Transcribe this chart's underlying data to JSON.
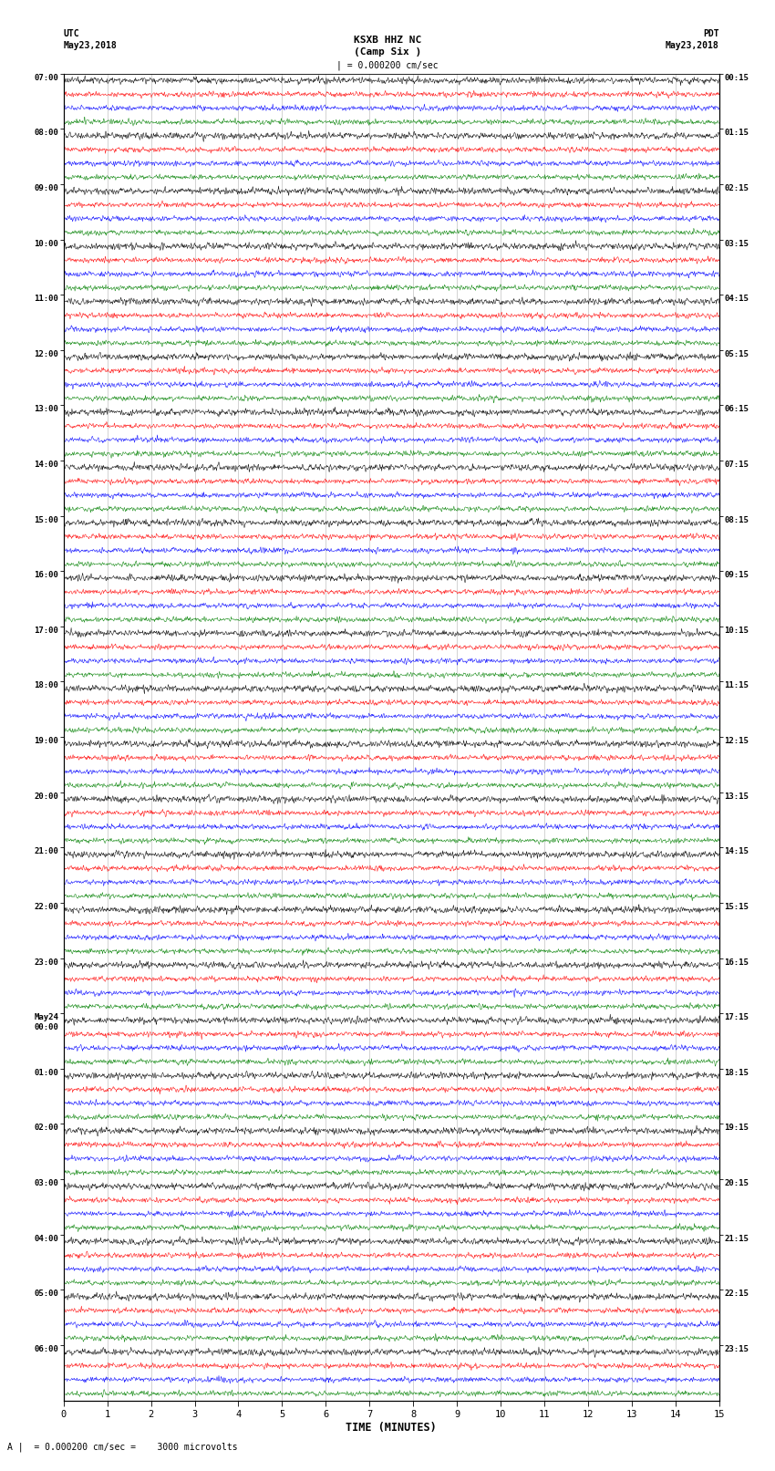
{
  "title_center": "KSXB HHZ NC",
  "title_sub": "(Camp Six )",
  "label_left_top": "UTC",
  "label_left_date": "May23,2018",
  "label_right_top": "PDT",
  "label_right_date": "May23,2018",
  "scale_label": "| = 0.000200 cm/sec",
  "footer_text": "A |  = 0.000200 cm/sec =    3000 microvolts",
  "xlabel": "TIME (MINUTES)",
  "utc_times": [
    "07:00",
    "08:00",
    "09:00",
    "10:00",
    "11:00",
    "12:00",
    "13:00",
    "14:00",
    "15:00",
    "16:00",
    "17:00",
    "18:00",
    "19:00",
    "20:00",
    "21:00",
    "22:00",
    "23:00",
    "May24\n00:00",
    "01:00",
    "02:00",
    "03:00",
    "04:00",
    "05:00",
    "06:00"
  ],
  "pdt_times": [
    "00:15",
    "01:15",
    "02:15",
    "03:15",
    "04:15",
    "05:15",
    "06:15",
    "07:15",
    "08:15",
    "09:15",
    "10:15",
    "11:15",
    "12:15",
    "13:15",
    "14:15",
    "15:15",
    "16:15",
    "17:15",
    "18:15",
    "19:15",
    "20:15",
    "21:15",
    "22:15",
    "23:15"
  ],
  "n_groups": 24,
  "traces_per_group": 4,
  "colors": [
    "black",
    "red",
    "blue",
    "green"
  ],
  "trace_amp_black": 0.28,
  "trace_amp_color": 0.22,
  "bg_color": "white",
  "xticks": [
    0,
    1,
    2,
    3,
    4,
    5,
    6,
    7,
    8,
    9,
    10,
    11,
    12,
    13,
    14,
    15
  ],
  "xlim": [
    0,
    15
  ],
  "noise_seed": 1234
}
